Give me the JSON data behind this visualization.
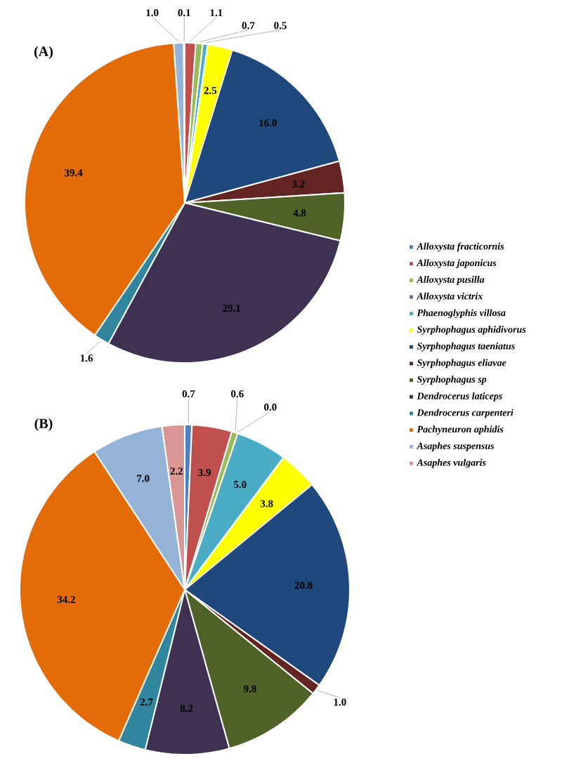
{
  "chart_data": [
    {
      "type": "pie",
      "title": "(A)",
      "legend": "right",
      "categories": [
        "Alloxysta fracticornis",
        "Alloxysta japonicus",
        "Alloxysta pusilla",
        "Alloxysta victrix",
        "Phaenoglyphis villosa",
        "Syrphophagus aphidivorus",
        "Syrphophagus taeniatus",
        "Syrphophagus eliavae",
        "Syrphophagus sp",
        "Dendrocerus laticeps",
        "Dendrocerus carpenteri",
        "Pachyneuron aphidis",
        "Asaphes suspensus",
        "Asaphes vulgaris"
      ],
      "values": [
        null,
        1.1,
        0.7,
        null,
        0.5,
        2.5,
        16.0,
        3.2,
        4.8,
        29.1,
        1.6,
        39.4,
        1.0,
        0.1
      ],
      "value_labels": [
        null,
        "1.1",
        "0.7",
        null,
        "0.5",
        "2.5",
        "16.0",
        "3.2",
        "4.8",
        "29.1",
        "1.6",
        "39.4",
        "1.0",
        "0.1"
      ],
      "colors": [
        "#4f81bd",
        "#c0504d",
        "#9bbb59",
        "#8064a2",
        "#4bacc6",
        "#ffff00",
        "#1f497d",
        "#632523",
        "#4f6228",
        "#3f3151",
        "#31859c",
        "#e36c09",
        "#95b3d7",
        "#d99694"
      ]
    },
    {
      "type": "pie",
      "title": "(B)",
      "categories": [
        null,
        null,
        null,
        null,
        null,
        null,
        null,
        null,
        null,
        null,
        null,
        null,
        null,
        null
      ],
      "values": [
        0.7,
        3.9,
        0.6,
        0.0,
        5.0,
        3.8,
        20.8,
        1.0,
        9.8,
        8.2,
        2.7,
        34.2,
        7.0,
        2.2
      ],
      "value_labels": [
        "0.7",
        "3.9",
        "0.6",
        "0.0",
        "5.0",
        "3.8",
        "20.8",
        "1.0",
        "9.8",
        "8.2",
        "2.7",
        "34.2",
        "7.0",
        "2.2"
      ],
      "colors": [
        "#4f81bd",
        "#c0504d",
        "#9bbb59",
        "#8064a2",
        "#4bacc6",
        "#ffff00",
        "#1f497d",
        "#632523",
        "#4f6228",
        "#3f3151",
        "#31859c",
        "#e36c09",
        "#95b3d7",
        "#d99694"
      ]
    }
  ]
}
